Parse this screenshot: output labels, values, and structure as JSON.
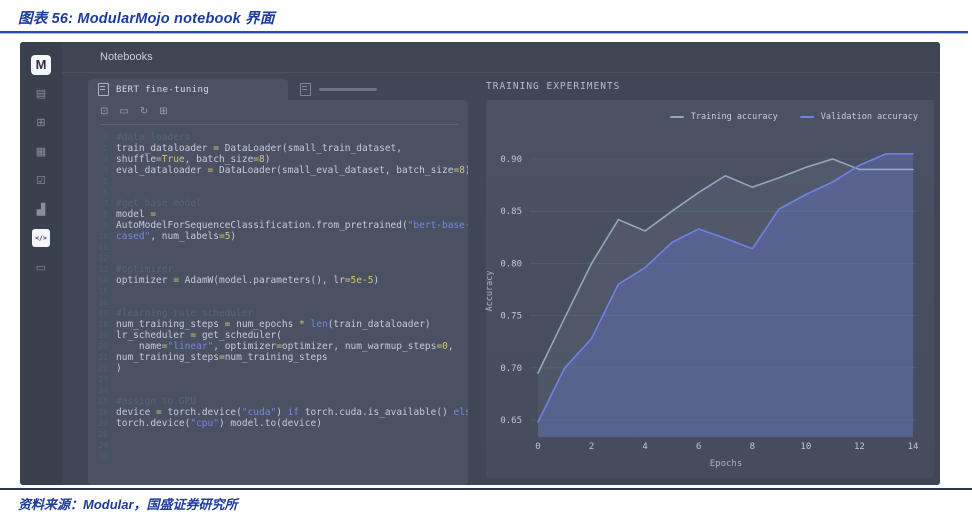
{
  "figure": {
    "title": "图表 56:  ModularMojo notebook 界面",
    "source": "资料来源：Modular，国盛证券研究所",
    "accent_color": "#1c3c9c"
  },
  "app": {
    "topbar": {
      "title": "Notebooks"
    },
    "sidebar": {
      "logo": "M",
      "items": [
        {
          "name": "notebooks-icon",
          "glyph": "▤",
          "active": false
        },
        {
          "name": "add-notebook-icon",
          "glyph": "⊞",
          "active": false
        },
        {
          "name": "datasets-icon",
          "glyph": "▦",
          "active": false
        },
        {
          "name": "tasks-icon",
          "glyph": "☑",
          "active": false
        },
        {
          "name": "metrics-icon",
          "glyph": "▟",
          "active": false
        },
        {
          "name": "code-icon",
          "glyph": "</>",
          "active": true
        },
        {
          "name": "files-icon",
          "glyph": "▭",
          "active": false
        }
      ]
    },
    "notebook": {
      "active_tab": "BERT fine-tuning",
      "toolbar_icons": [
        {
          "name": "copy-icon",
          "glyph": "⊡"
        },
        {
          "name": "save-icon",
          "glyph": "▭"
        },
        {
          "name": "run-refresh-icon",
          "glyph": "↻"
        },
        {
          "name": "add-cell-icon",
          "glyph": "⊞"
        }
      ],
      "code": {
        "lines": [
          [
            [
              "c",
              "#data loaders"
            ]
          ],
          [
            [
              "p",
              "train_dataloader "
            ],
            [
              "y",
              "="
            ],
            [
              "p",
              " DataLoader(small_train_dataset,"
            ]
          ],
          [
            [
              "p",
              "shuffle"
            ],
            [
              "y",
              "=True"
            ],
            [
              "p",
              ", batch_size"
            ],
            [
              "y",
              "=8"
            ],
            [
              "p",
              ")"
            ]
          ],
          [
            [
              "p",
              "eval_dataloader "
            ],
            [
              "y",
              "="
            ],
            [
              "p",
              " DataLoader(small_eval_dataset, batch_size"
            ],
            [
              "y",
              "=8"
            ],
            [
              "p",
              ")"
            ]
          ],
          [],
          [],
          [
            [
              "c",
              "#get base model"
            ]
          ],
          [
            [
              "p",
              "model "
            ],
            [
              "y",
              "="
            ]
          ],
          [
            [
              "p",
              "AutoModelForSequenceClassification.from_pretrained("
            ],
            [
              "s",
              "\"bert-base-"
            ]
          ],
          [
            [
              "s",
              "cased\""
            ],
            [
              "p",
              ", num_labels"
            ],
            [
              "y",
              "=5"
            ],
            [
              "p",
              ")"
            ]
          ],
          [],
          [],
          [
            [
              "c",
              "#optimizer"
            ]
          ],
          [
            [
              "p",
              "optimizer "
            ],
            [
              "y",
              "="
            ],
            [
              "p",
              " AdamW(model.parameters(), lr"
            ],
            [
              "y",
              "=5e-5"
            ],
            [
              "p",
              ")"
            ]
          ],
          [],
          [],
          [
            [
              "c",
              "#learning rate scheduler"
            ]
          ],
          [
            [
              "p",
              "num_training_steps "
            ],
            [
              "y",
              "="
            ],
            [
              "p",
              " num_epochs "
            ],
            [
              "y",
              "*"
            ],
            [
              "p",
              " "
            ],
            [
              "s",
              "len"
            ],
            [
              "p",
              "(train_dataloader)"
            ]
          ],
          [
            [
              "p",
              "lr_scheduler "
            ],
            [
              "y",
              "="
            ],
            [
              "p",
              " get_scheduler("
            ]
          ],
          [
            [
              "p",
              "    name"
            ],
            [
              "y",
              "="
            ],
            [
              "s",
              "\"linear\""
            ],
            [
              "p",
              ", optimizer"
            ],
            [
              "y",
              "="
            ],
            [
              "p",
              "optimizer, num_warmup_steps"
            ],
            [
              "y",
              "=0"
            ],
            [
              "p",
              ","
            ]
          ],
          [
            [
              "p",
              "num_training_steps"
            ],
            [
              "y",
              "="
            ],
            [
              "p",
              "num_training_steps"
            ]
          ],
          [
            [
              "p",
              ")"
            ]
          ],
          [],
          [],
          [
            [
              "c",
              "#assign to GPU"
            ]
          ],
          [
            [
              "p",
              "device "
            ],
            [
              "y",
              "="
            ],
            [
              "p",
              " torch.device("
            ],
            [
              "s",
              "\"cuda\""
            ],
            [
              "p",
              ") "
            ],
            [
              "s",
              "if"
            ],
            [
              "p",
              " torch.cuda.is_available() "
            ],
            [
              "s",
              "else"
            ]
          ],
          [
            [
              "p",
              "torch.device("
            ],
            [
              "s",
              "\"cpu\""
            ],
            [
              "p",
              ") model.to(device)"
            ]
          ],
          [],
          [],
          []
        ]
      }
    },
    "experiments": {
      "header": "TRAINING EXPERIMENTS"
    }
  },
  "chart_data": {
    "type": "line",
    "title": "",
    "xlabel": "Epochs",
    "ylabel": "Accuracy",
    "x": [
      0,
      1,
      2,
      3,
      4,
      5,
      6,
      7,
      8,
      9,
      10,
      11,
      12,
      13,
      14
    ],
    "xticks": [
      0,
      2,
      4,
      6,
      8,
      10,
      12,
      14
    ],
    "yticks": [
      0.65,
      0.7,
      0.75,
      0.8,
      0.85,
      0.9
    ],
    "xlim": [
      0,
      14
    ],
    "ylim": [
      0.635,
      0.925
    ],
    "grid": true,
    "legend_position": "top-right",
    "series": [
      {
        "name": "Training accuracy",
        "color": "#9ba3c2",
        "fill": "rgba(155,163,194,0.10)",
        "values": [
          0.695,
          0.748,
          0.8,
          0.842,
          0.831,
          0.85,
          0.868,
          0.884,
          0.873,
          0.882,
          0.892,
          0.9,
          0.89,
          0.89,
          0.89
        ]
      },
      {
        "name": "Validation accuracy",
        "color": "#7080e8",
        "fill": "rgba(106,120,224,0.32)",
        "values": [
          0.648,
          0.7,
          0.728,
          0.78,
          0.796,
          0.82,
          0.833,
          0.824,
          0.814,
          0.852,
          0.866,
          0.878,
          0.894,
          0.905,
          0.905
        ]
      }
    ]
  }
}
